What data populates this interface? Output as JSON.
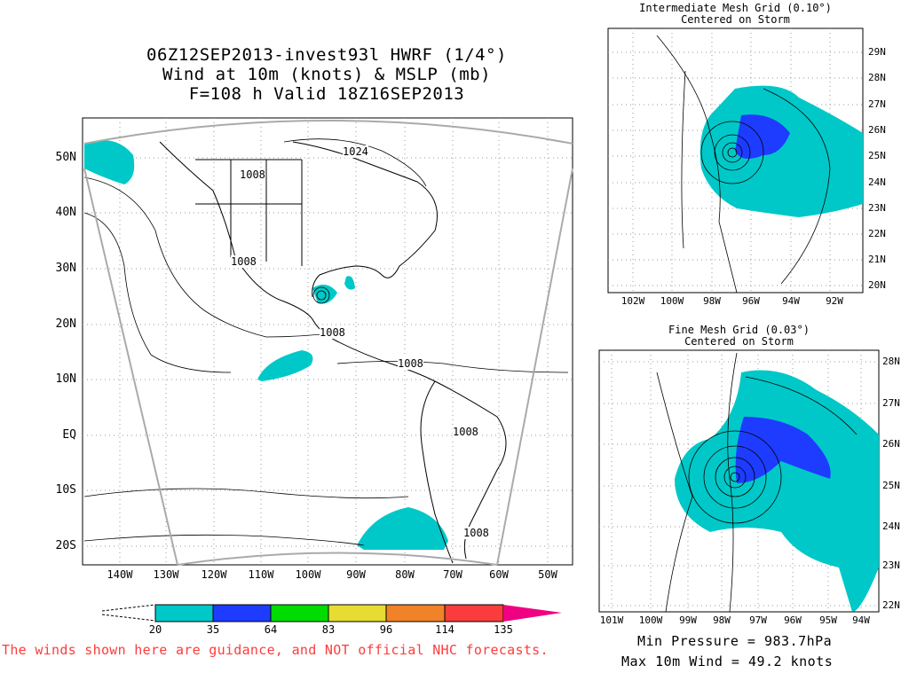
{
  "main": {
    "title_lines": [
      "06Z12SEP2013-invest93l HWRF (1/4°)",
      "Wind at 10m (knots) & MSLP (mb)",
      "F=108 h Valid 18Z16SEP2013"
    ],
    "lat_labels": [
      "50N",
      "40N",
      "30N",
      "20N",
      "10N",
      "EQ",
      "10S",
      "20S"
    ],
    "lon_labels": [
      "140W",
      "130W",
      "120W",
      "110W",
      "100W",
      "90W",
      "80W",
      "70W",
      "60W",
      "50W"
    ],
    "contour_labels": [
      "1024",
      "1008",
      "1008",
      "1008",
      "1008",
      "1008",
      "1008"
    ]
  },
  "intermediate": {
    "title": "Intermediate Mesh Grid (0.10°)",
    "subtitle": "Centered on Storm",
    "lat_labels": [
      "29N",
      "28N",
      "27N",
      "26N",
      "25N",
      "24N",
      "23N",
      "22N",
      "21N",
      "20N"
    ],
    "lon_labels": [
      "102W",
      "100W",
      "98W",
      "96W",
      "94W",
      "92W"
    ]
  },
  "fine": {
    "title": "Fine Mesh Grid (0.03°)",
    "subtitle": "Centered on Storm",
    "lat_labels": [
      "28N",
      "27N",
      "26N",
      "25N",
      "24N",
      "23N",
      "22N"
    ],
    "lon_labels": [
      "101W",
      "100W",
      "99W",
      "98W",
      "97W",
      "96W",
      "95W",
      "94W"
    ]
  },
  "colorbar": {
    "ticks": [
      "20",
      "35",
      "64",
      "83",
      "96",
      "114",
      "135"
    ],
    "colors": [
      "#00c8c8",
      "#1e3cff",
      "#00dc00",
      "#e6dc32",
      "#f08228",
      "#fa3c3c",
      "#f00082"
    ]
  },
  "disclaimer": "The winds shown here are guidance, and NOT official NHC forecasts.",
  "stats": {
    "min_pressure": "Min Pressure = 983.7hPa",
    "max_wind": "Max 10m Wind = 49.2 knots"
  }
}
